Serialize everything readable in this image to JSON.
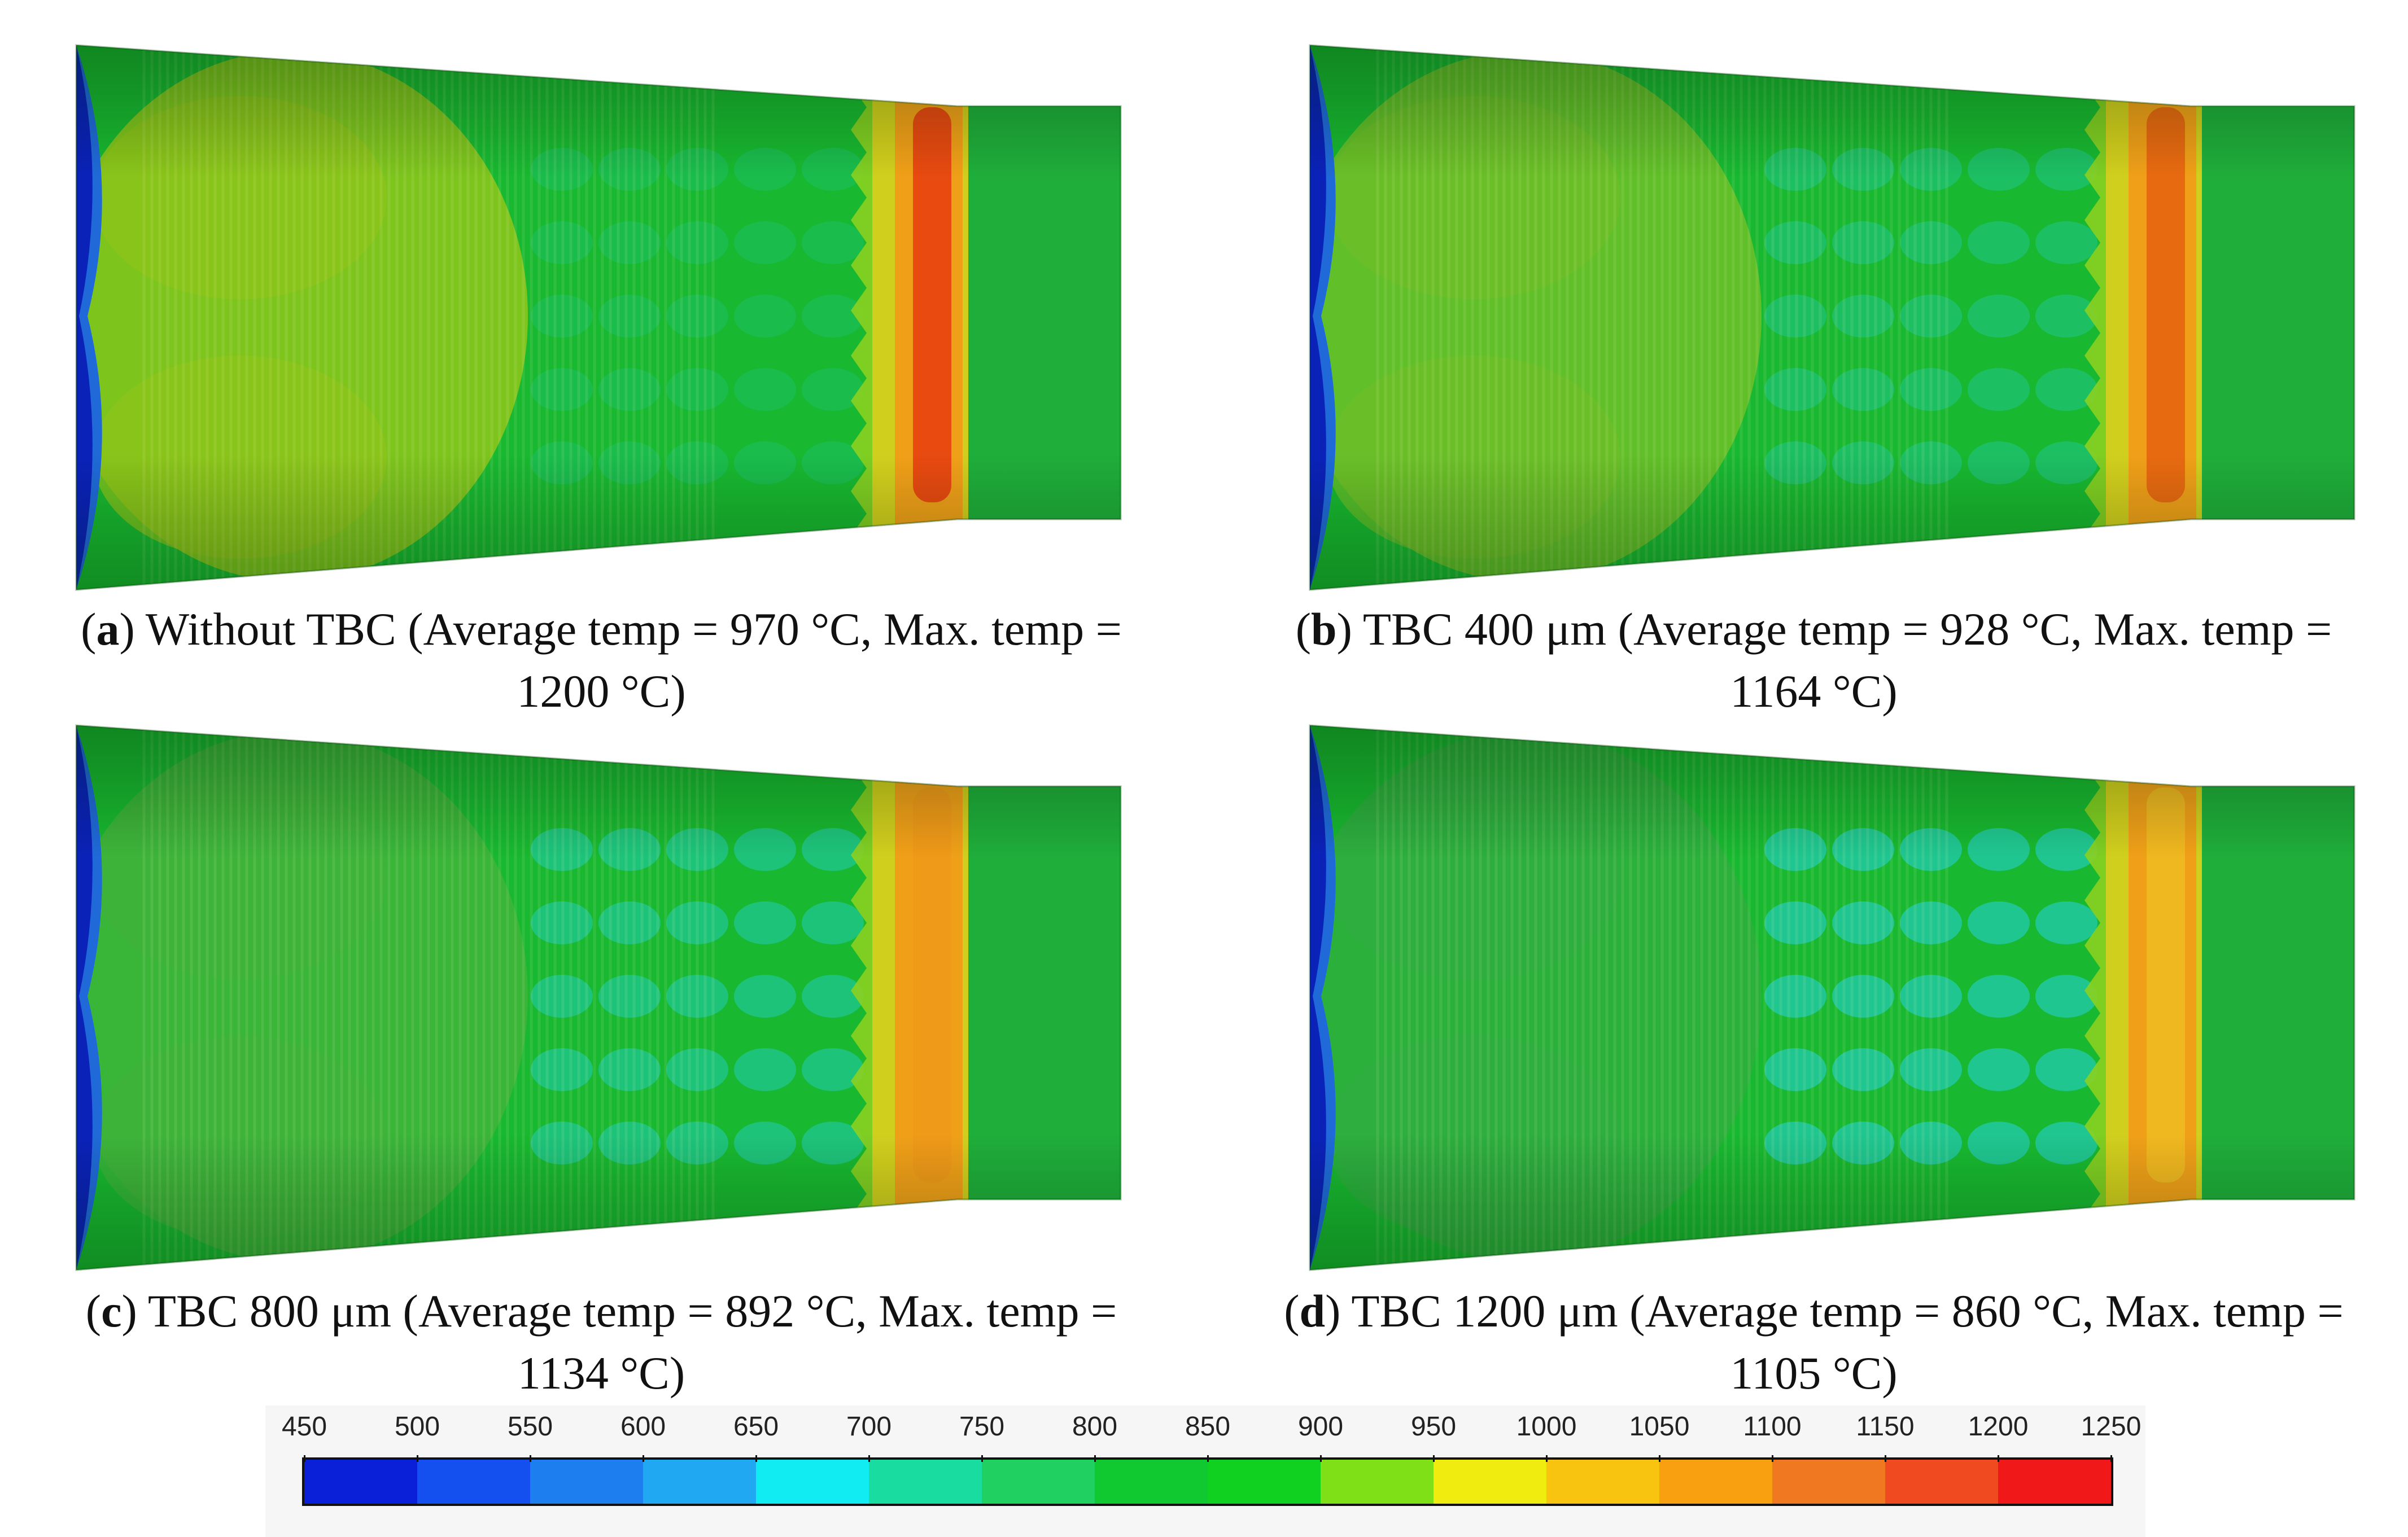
{
  "panels": [
    {
      "id": "a",
      "letter": "a",
      "caption_line1": ") Without TBC (Average temp = 970 °C, Max. temp =",
      "caption_line2": "1200 °C)",
      "tint": "#8fc51a",
      "hot_color": "#e84a10",
      "cool_spots": 0.15
    },
    {
      "id": "b",
      "letter": "b",
      "caption_line1": ") TBC 400 μm (Average temp = 928 °C, Max. temp =",
      "caption_line2": "1164 °C)",
      "tint": "#6ebf28",
      "hot_color": "#e86a10",
      "cool_spots": 0.45
    },
    {
      "id": "c",
      "letter": "c",
      "caption_line1": ") TBC 800 μm (Average temp = 892 °C, Max. temp =",
      "caption_line2": "1134 °C)",
      "tint": "#3fb43a",
      "hot_color": "#ef9a18",
      "cool_spots": 0.75
    },
    {
      "id": "d",
      "letter": "d",
      "caption_line1": ") TBC 1200 μm (Average temp = 860 °C, Max. temp =",
      "caption_line2": "1105 °C)",
      "tint": "#2fae3e",
      "hot_color": "#f0b820",
      "cool_spots": 1.0
    }
  ],
  "colorbar": {
    "ticks": [
      "450",
      "500",
      "550",
      "600",
      "650",
      "700",
      "750",
      "800",
      "850",
      "900",
      "950",
      "1000",
      "1050",
      "1100",
      "1150",
      "1200",
      "1250"
    ],
    "colors": [
      "#0a1fd8",
      "#1450f0",
      "#1d7ef0",
      "#20a8f2",
      "#10ecf2",
      "#18dca0",
      "#20d060",
      "#10c830",
      "#10d020",
      "#80e018",
      "#f0ec10",
      "#f8c410",
      "#f8a010",
      "#f07820",
      "#f04a20",
      "#f01818"
    ]
  }
}
